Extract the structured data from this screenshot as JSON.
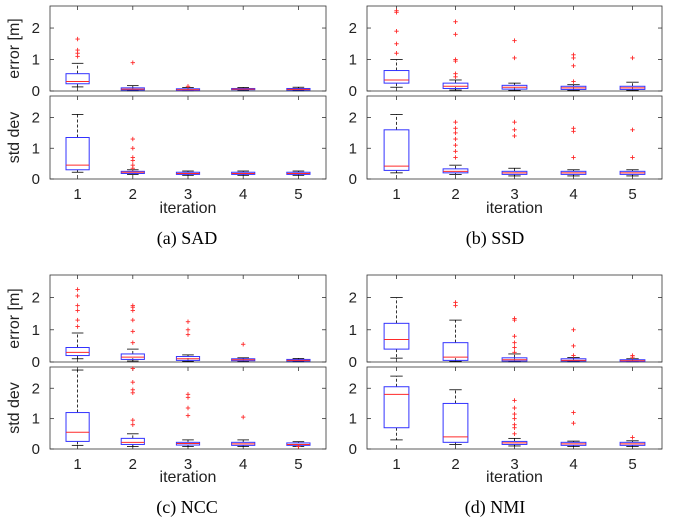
{
  "chart_data": [
    {
      "type": "boxplot",
      "caption": "(a)  SAD",
      "xlabel": "iteration",
      "categories": [
        "1",
        "2",
        "3",
        "4",
        "5"
      ],
      "subplots": [
        {
          "ylabel": "error [m]",
          "ylim": [
            0,
            2.7
          ],
          "yticks": [
            0,
            1,
            2
          ],
          "boxes": [
            {
              "q1": 0.23,
              "median": 0.3,
              "q3": 0.55,
              "whisker_low": 0.13,
              "whisker_high": 0.88,
              "outliers": [
                1.1,
                1.2,
                1.3,
                1.65
              ]
            },
            {
              "q1": 0.03,
              "median": 0.06,
              "q3": 0.1,
              "whisker_low": 0.01,
              "whisker_high": 0.17,
              "outliers": [
                0.9
              ]
            },
            {
              "q1": 0.02,
              "median": 0.04,
              "q3": 0.07,
              "whisker_low": 0.01,
              "whisker_high": 0.11,
              "outliers": [
                0.15
              ]
            },
            {
              "q1": 0.04,
              "median": 0.06,
              "q3": 0.08,
              "whisker_low": 0.02,
              "whisker_high": 0.11,
              "outliers": []
            },
            {
              "q1": 0.03,
              "median": 0.05,
              "q3": 0.08,
              "whisker_low": 0.01,
              "whisker_high": 0.12,
              "outliers": []
            }
          ]
        },
        {
          "ylabel": "std dev",
          "ylim": [
            0,
            2.7
          ],
          "yticks": [
            0,
            1,
            2
          ],
          "boxes": [
            {
              "q1": 0.3,
              "median": 0.45,
              "q3": 1.35,
              "whisker_low": 0.22,
              "whisker_high": 2.1,
              "outliers": []
            },
            {
              "q1": 0.18,
              "median": 0.22,
              "q3": 0.25,
              "whisker_low": 0.15,
              "whisker_high": 0.3,
              "outliers": [
                0.35,
                0.45,
                0.6,
                0.7,
                1.0,
                1.3
              ]
            },
            {
              "q1": 0.15,
              "median": 0.18,
              "q3": 0.22,
              "whisker_low": 0.12,
              "whisker_high": 0.26,
              "outliers": []
            },
            {
              "q1": 0.15,
              "median": 0.18,
              "q3": 0.22,
              "whisker_low": 0.12,
              "whisker_high": 0.26,
              "outliers": []
            },
            {
              "q1": 0.15,
              "median": 0.18,
              "q3": 0.22,
              "whisker_low": 0.12,
              "whisker_high": 0.26,
              "outliers": []
            }
          ]
        }
      ]
    },
    {
      "type": "boxplot",
      "caption": "(b)  SSD",
      "xlabel": "iteration",
      "categories": [
        "1",
        "2",
        "3",
        "4",
        "5"
      ],
      "subplots": [
        {
          "ylabel": "",
          "ylim": [
            0,
            2.7
          ],
          "yticks": [
            0,
            1,
            2
          ],
          "boxes": [
            {
              "q1": 0.25,
              "median": 0.35,
              "q3": 0.65,
              "whisker_low": 0.12,
              "whisker_high": 1.0,
              "outliers": [
                1.2,
                1.5,
                1.9,
                2.5,
                2.55
              ]
            },
            {
              "q1": 0.08,
              "median": 0.15,
              "q3": 0.25,
              "whisker_low": 0.03,
              "whisker_high": 0.35,
              "outliers": [
                0.45,
                0.55,
                0.95,
                1.0,
                1.8,
                2.2
              ]
            },
            {
              "q1": 0.06,
              "median": 0.12,
              "q3": 0.18,
              "whisker_low": 0.02,
              "whisker_high": 0.25,
              "outliers": [
                1.05,
                1.6
              ]
            },
            {
              "q1": 0.05,
              "median": 0.1,
              "q3": 0.15,
              "whisker_low": 0.02,
              "whisker_high": 0.2,
              "outliers": [
                0.3,
                0.8,
                1.05,
                1.15
              ]
            },
            {
              "q1": 0.05,
              "median": 0.1,
              "q3": 0.15,
              "whisker_low": 0.02,
              "whisker_high": 0.28,
              "outliers": [
                1.05
              ]
            }
          ]
        },
        {
          "ylabel": "",
          "ylim": [
            0,
            2.7
          ],
          "yticks": [
            0,
            1,
            2
          ],
          "boxes": [
            {
              "q1": 0.28,
              "median": 0.42,
              "q3": 1.6,
              "whisker_low": 0.2,
              "whisker_high": 2.1,
              "outliers": []
            },
            {
              "q1": 0.2,
              "median": 0.25,
              "q3": 0.33,
              "whisker_low": 0.15,
              "whisker_high": 0.45,
              "outliers": [
                0.7,
                0.9,
                1.1,
                1.3,
                1.5,
                1.65,
                1.85
              ]
            },
            {
              "q1": 0.15,
              "median": 0.2,
              "q3": 0.25,
              "whisker_low": 0.1,
              "whisker_high": 0.35,
              "outliers": [
                1.4,
                1.6,
                1.85
              ]
            },
            {
              "q1": 0.15,
              "median": 0.2,
              "q3": 0.25,
              "whisker_low": 0.1,
              "whisker_high": 0.3,
              "outliers": [
                0.7,
                1.55,
                1.65
              ]
            },
            {
              "q1": 0.15,
              "median": 0.2,
              "q3": 0.25,
              "whisker_low": 0.1,
              "whisker_high": 0.3,
              "outliers": [
                0.7,
                1.6
              ]
            }
          ]
        }
      ]
    },
    {
      "type": "boxplot",
      "caption": "(c)  NCC",
      "xlabel": "iteration",
      "categories": [
        "1",
        "2",
        "3",
        "4",
        "5"
      ],
      "subplots": [
        {
          "ylabel": "error [m]",
          "ylim": [
            0,
            2.7
          ],
          "yticks": [
            0,
            1,
            2
          ],
          "boxes": [
            {
              "q1": 0.2,
              "median": 0.3,
              "q3": 0.45,
              "whisker_low": 0.1,
              "whisker_high": 0.9,
              "outliers": [
                1.1,
                1.3,
                1.6,
                1.75,
                2.05,
                2.25
              ]
            },
            {
              "q1": 0.08,
              "median": 0.15,
              "q3": 0.25,
              "whisker_low": 0.03,
              "whisker_high": 0.4,
              "outliers": [
                0.6,
                0.95,
                1.3,
                1.6,
                1.7,
                1.75
              ]
            },
            {
              "q1": 0.05,
              "median": 0.1,
              "q3": 0.17,
              "whisker_low": 0.02,
              "whisker_high": 0.22,
              "outliers": [
                0.85,
                1.0,
                1.25
              ]
            },
            {
              "q1": 0.04,
              "median": 0.07,
              "q3": 0.1,
              "whisker_low": 0.02,
              "whisker_high": 0.13,
              "outliers": [
                0.55
              ]
            },
            {
              "q1": 0.03,
              "median": 0.05,
              "q3": 0.08,
              "whisker_low": 0.01,
              "whisker_high": 0.11,
              "outliers": []
            }
          ]
        },
        {
          "ylabel": "std dev",
          "ylim": [
            0,
            2.7
          ],
          "yticks": [
            0,
            1,
            2
          ],
          "boxes": [
            {
              "q1": 0.25,
              "median": 0.55,
              "q3": 1.2,
              "whisker_low": 0.12,
              "whisker_high": 2.6,
              "outliers": []
            },
            {
              "q1": 0.15,
              "median": 0.22,
              "q3": 0.35,
              "whisker_low": 0.08,
              "whisker_high": 0.5,
              "outliers": [
                0.8,
                0.95,
                1.85,
                1.95,
                2.2,
                2.65
              ]
            },
            {
              "q1": 0.13,
              "median": 0.18,
              "q3": 0.22,
              "whisker_low": 0.08,
              "whisker_high": 0.3,
              "outliers": [
                1.1,
                1.35,
                1.7,
                1.8
              ]
            },
            {
              "q1": 0.12,
              "median": 0.17,
              "q3": 0.22,
              "whisker_low": 0.08,
              "whisker_high": 0.3,
              "outliers": [
                1.05
              ]
            },
            {
              "q1": 0.12,
              "median": 0.15,
              "q3": 0.2,
              "whisker_low": 0.08,
              "whisker_high": 0.24,
              "outliers": [
                0.08
              ]
            }
          ]
        }
      ]
    },
    {
      "type": "boxplot",
      "caption": "(d)  NMI",
      "xlabel": "iteration",
      "categories": [
        "1",
        "2",
        "3",
        "4",
        "5"
      ],
      "subplots": [
        {
          "ylabel": "",
          "ylim": [
            0,
            2.7
          ],
          "yticks": [
            0,
            1,
            2
          ],
          "boxes": [
            {
              "q1": 0.4,
              "median": 0.7,
              "q3": 1.2,
              "whisker_low": 0.12,
              "whisker_high": 2.0,
              "outliers": []
            },
            {
              "q1": 0.05,
              "median": 0.15,
              "q3": 0.6,
              "whisker_low": 0.02,
              "whisker_high": 1.3,
              "outliers": [
                1.75,
                1.85
              ]
            },
            {
              "q1": 0.03,
              "median": 0.07,
              "q3": 0.13,
              "whisker_low": 0.01,
              "whisker_high": 0.25,
              "outliers": [
                0.3,
                0.45,
                0.6,
                0.8,
                1.3,
                1.35
              ]
            },
            {
              "q1": 0.03,
              "median": 0.05,
              "q3": 0.1,
              "whisker_low": 0.01,
              "whisker_high": 0.14,
              "outliers": [
                0.2,
                0.5,
                1.0
              ]
            },
            {
              "q1": 0.02,
              "median": 0.04,
              "q3": 0.07,
              "whisker_low": 0.01,
              "whisker_high": 0.1,
              "outliers": [
                0.15,
                0.2
              ]
            }
          ]
        },
        {
          "ylabel": "",
          "ylim": [
            0,
            2.7
          ],
          "yticks": [
            0,
            1,
            2
          ],
          "boxes": [
            {
              "q1": 0.7,
              "median": 1.8,
              "q3": 2.05,
              "whisker_low": 0.3,
              "whisker_high": 2.4,
              "outliers": []
            },
            {
              "q1": 0.22,
              "median": 0.4,
              "q3": 1.5,
              "whisker_low": 0.15,
              "whisker_high": 1.95,
              "outliers": []
            },
            {
              "q1": 0.15,
              "median": 0.2,
              "q3": 0.25,
              "whisker_low": 0.1,
              "whisker_high": 0.35,
              "outliers": [
                0.5,
                0.7,
                0.8,
                1.0,
                1.15,
                1.35,
                1.6
              ]
            },
            {
              "q1": 0.12,
              "median": 0.17,
              "q3": 0.22,
              "whisker_low": 0.08,
              "whisker_high": 0.26,
              "outliers": [
                0.85,
                1.2
              ]
            },
            {
              "q1": 0.12,
              "median": 0.17,
              "q3": 0.22,
              "whisker_low": 0.08,
              "whisker_high": 0.27,
              "outliers": [
                0.38
              ]
            }
          ]
        }
      ]
    }
  ],
  "colors": {
    "box": "#3333ff",
    "median": "#ff2a2a",
    "outlier": "#ff2a2a",
    "whisker": "#000000",
    "axis": "#333333"
  }
}
